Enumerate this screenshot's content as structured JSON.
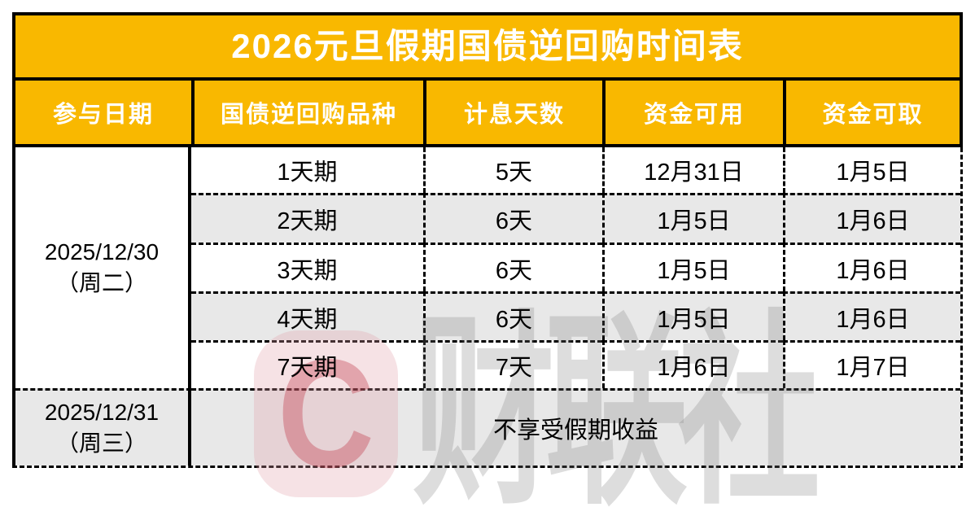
{
  "table": {
    "title": "2026元旦假期国债逆回购时间表",
    "columns": [
      "参与日期",
      "国债逆回购品种",
      "计息天数",
      "资金可用",
      "资金可取"
    ],
    "body": {
      "group1": {
        "date": [
          "2025/12/30",
          "（周二）"
        ],
        "rows": [
          [
            "1天期",
            "5天",
            "12月31日",
            "1月5日"
          ],
          [
            "2天期",
            "6天",
            "1月5日",
            "1月6日"
          ],
          [
            "3天期",
            "6天",
            "1月5日",
            "1月6日"
          ],
          [
            "4天期",
            "6天",
            "1月5日",
            "1月6日"
          ],
          [
            "7天期",
            "7天",
            "1月6日",
            "1月7日"
          ]
        ]
      },
      "group2": {
        "date": [
          "2025/12/31",
          "（周三）"
        ],
        "note": "不享受假期收益"
      }
    }
  },
  "watermark": {
    "badge_letter": "C",
    "brand_text": "财联社"
  },
  "colors": {
    "accent-orange": "#F9B800",
    "row-alt": "#E8E8E8",
    "border-black": "#000000",
    "header-text": "#FFFFFF",
    "body-text": "#000000",
    "watermark-pink": "#E1A0AA",
    "watermark-red": "#BE3241",
    "watermark-gray": "#7D7D7D"
  }
}
